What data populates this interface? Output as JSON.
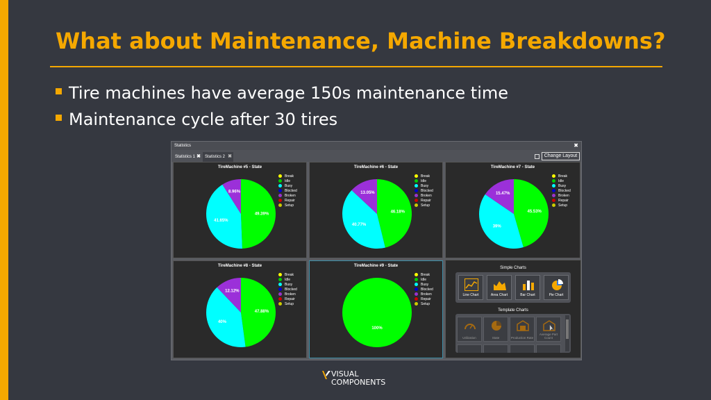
{
  "slide": {
    "title": "What about Maintenance, Machine Breakdowns?",
    "bullets": [
      "Tire machines have average 150s maintenance time",
      "Maintenance cycle after 30 tires"
    ],
    "accent_color": "#f5a800",
    "background_color": "#353840"
  },
  "window": {
    "title": "Statistics",
    "close_icon": "close-icon",
    "tabs": [
      {
        "label": "Statistics 1"
      },
      {
        "label": "Statistics 2"
      }
    ],
    "change_layout_label": "Change Layout"
  },
  "legend": [
    {
      "label": "Break",
      "color": "#ffff00"
    },
    {
      "label": "Idle",
      "color": "#00cc00"
    },
    {
      "label": "Busy",
      "color": "#00ffff"
    },
    {
      "label": "Blocked",
      "color": "#0000cc"
    },
    {
      "label": "Broken",
      "color": "#9933cc"
    },
    {
      "label": "Repair",
      "color": "#cc0000"
    },
    {
      "label": "Setup",
      "color": "#cccc00"
    }
  ],
  "chart_data": [
    {
      "type": "pie",
      "title": "TireMachine #5 - State",
      "categories": [
        "Idle",
        "Busy",
        "Broken"
      ],
      "values": [
        49.39,
        41.65,
        8.96
      ],
      "labels": [
        "49.39%",
        "41.65%",
        "8.96%"
      ],
      "colors": [
        "#00ff00",
        "#00ffff",
        "#9b30d9"
      ]
    },
    {
      "type": "pie",
      "title": "TireMachine #6 - State",
      "categories": [
        "Idle",
        "Busy",
        "Broken"
      ],
      "values": [
        46.18,
        40.77,
        13.05
      ],
      "labels": [
        "46.18%",
        "40.77%",
        "13.05%"
      ],
      "colors": [
        "#00ff00",
        "#00ffff",
        "#9b30d9"
      ]
    },
    {
      "type": "pie",
      "title": "TireMachine #7 - State",
      "categories": [
        "Idle",
        "Busy",
        "Broken"
      ],
      "values": [
        45.53,
        39,
        15.47
      ],
      "labels": [
        "45.53%",
        "39%",
        "15.47%"
      ],
      "colors": [
        "#00ff00",
        "#00ffff",
        "#9b30d9"
      ]
    },
    {
      "type": "pie",
      "title": "TireMachine #8 - State",
      "categories": [
        "Idle",
        "Busy",
        "Broken"
      ],
      "values": [
        47.88,
        40,
        12.12
      ],
      "labels": [
        "47.88%",
        "40%",
        "12.12%"
      ],
      "colors": [
        "#00ff00",
        "#00ffff",
        "#9b30d9"
      ]
    },
    {
      "type": "pie",
      "title": "TireMachine #9 - State",
      "categories": [
        "Idle"
      ],
      "values": [
        100
      ],
      "labels": [
        "100%"
      ],
      "colors": [
        "#00ff00"
      ]
    }
  ],
  "picker": {
    "simple_heading": "Simple Charts",
    "simple_charts": [
      {
        "label": "Line Chart",
        "icon": "line-chart-icon"
      },
      {
        "label": "Area Chart",
        "icon": "area-chart-icon"
      },
      {
        "label": "Bar Chart",
        "icon": "bar-chart-icon"
      },
      {
        "label": "Pie Chart",
        "icon": "pie-chart-icon"
      }
    ],
    "template_heading": "Template Charts",
    "template_charts": [
      {
        "label": "Utilization",
        "icon": "gauge-icon"
      },
      {
        "label": "State",
        "icon": "pie-chart-icon"
      },
      {
        "label": "Production Rate",
        "icon": "factory-icon"
      },
      {
        "label": "Average Part Count",
        "icon": "part-count-icon"
      }
    ]
  },
  "logo": {
    "line1": "VISUAL",
    "line2": "COMPONENTS"
  }
}
